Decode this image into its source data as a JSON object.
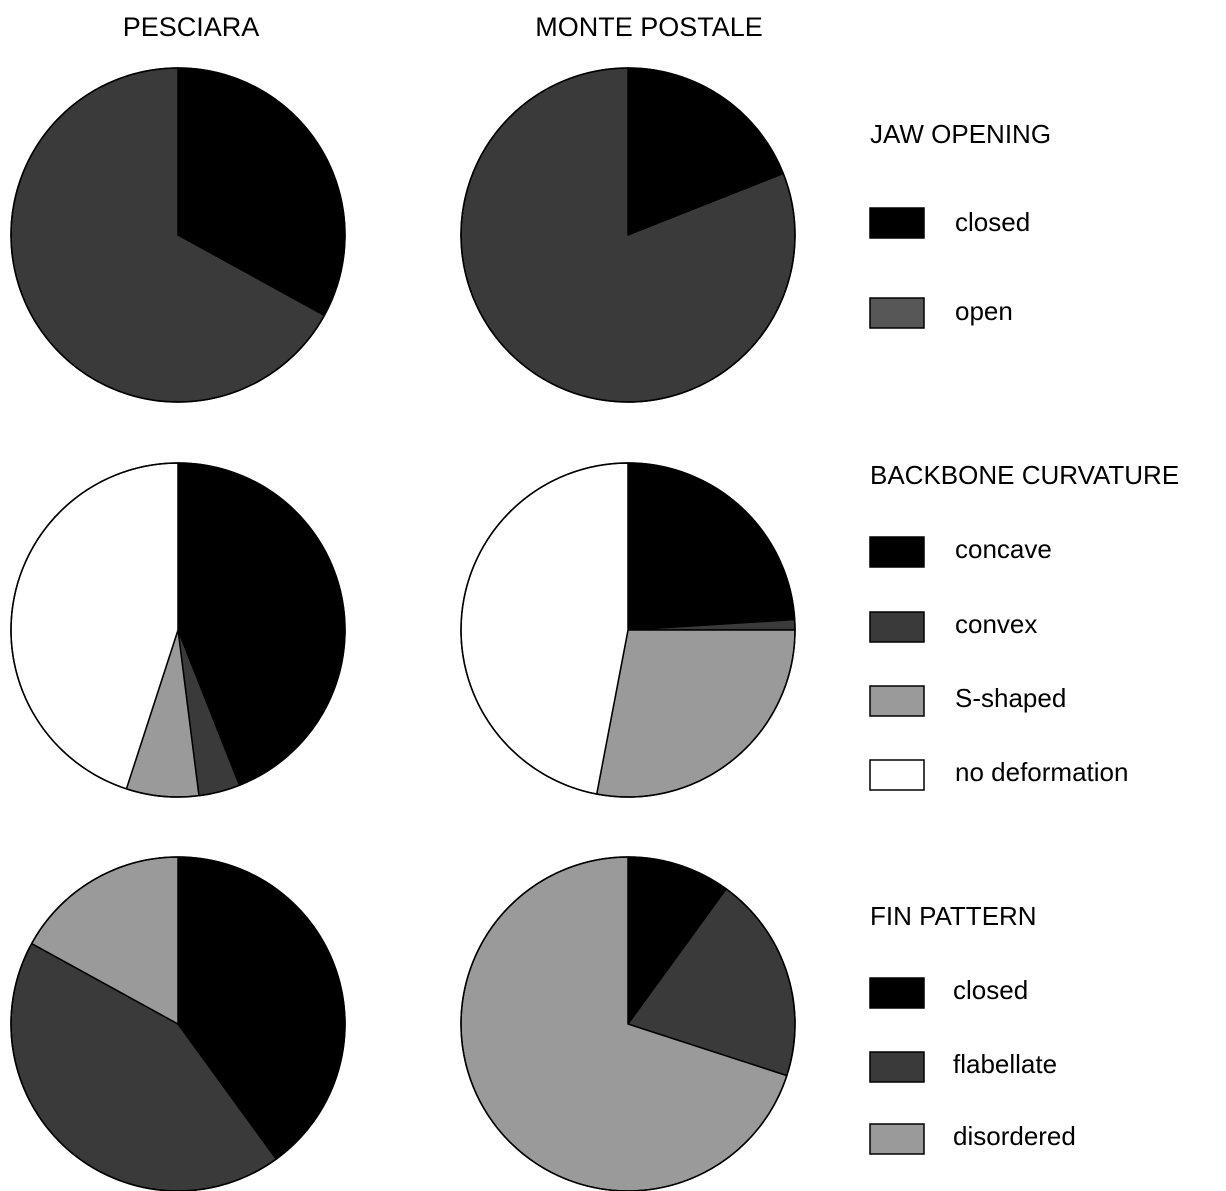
{
  "chart_data": {
    "type": "pie",
    "column_titles": [
      "PESCIARA",
      "MONTE POSTALE"
    ],
    "panels": [
      {
        "legend_title": "JAW OPENING",
        "categories": [
          "closed",
          "open"
        ],
        "colors": [
          "#000000",
          "#3a3a3a"
        ],
        "legend_colors": [
          "#000000",
          "#575757"
        ],
        "series": [
          {
            "name": "PESCIARA",
            "values": [
              33,
              67
            ]
          },
          {
            "name": "MONTE POSTALE",
            "values": [
              19,
              81
            ]
          }
        ]
      },
      {
        "legend_title": "BACKBONE CURVATURE",
        "categories": [
          "concave",
          "convex",
          "S-shaped",
          "no deformation"
        ],
        "colors": [
          "#000000",
          "#3a3a3a",
          "#9a9a9a",
          "#ffffff"
        ],
        "legend_colors": [
          "#000000",
          "#3a3a3a",
          "#9a9a9a",
          "#ffffff"
        ],
        "series": [
          {
            "name": "PESCIARA",
            "values": [
              44,
              4,
              7,
              45
            ]
          },
          {
            "name": "MONTE POSTALE",
            "values": [
              24,
              1,
              28,
              47
            ]
          }
        ]
      },
      {
        "legend_title": "FIN PATTERN",
        "categories": [
          "closed",
          "flabellate",
          "disordered"
        ],
        "colors": [
          "#000000",
          "#3a3a3a",
          "#9a9a9a"
        ],
        "legend_colors": [
          "#000000",
          "#3a3a3a",
          "#9a9a9a"
        ],
        "series": [
          {
            "name": "PESCIARA",
            "values": [
              40,
              43,
              17
            ]
          },
          {
            "name": "MONTE POSTALE",
            "values": [
              10,
              20,
              70
            ]
          }
        ]
      }
    ]
  }
}
